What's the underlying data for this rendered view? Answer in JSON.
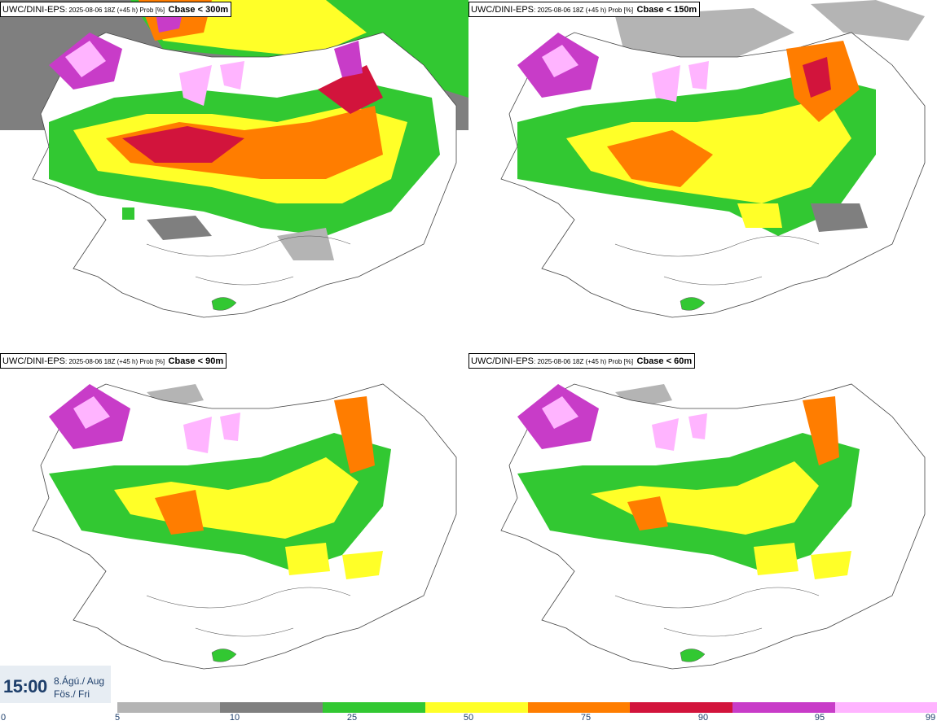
{
  "panels": [
    {
      "source": "UWC/DINI-EPS",
      "meta": ": 2025-08-06 18Z (+45 h) Prob [%]",
      "variable": "Cbase < 300m"
    },
    {
      "source": "UWC/DINI-EPS",
      "meta": ": 2025-08-06 18Z (+45 h) Prob [%]",
      "variable": "Cbase < 150m"
    },
    {
      "source": "UWC/DINI-EPS",
      "meta": ": 2025-08-06 18Z (+45 h) Prob [%]",
      "variable": "Cbase < 90m"
    },
    {
      "source": "UWC/DINI-EPS",
      "meta": ": 2025-08-06 18Z (+45 h) Prob [%]",
      "variable": "Cbase < 60m"
    }
  ],
  "valid_time": {
    "time": "15:00",
    "date_line1": "8.Ágú./ Aug",
    "date_line2": "Fös./ Fri"
  },
  "legend": {
    "ticks": [
      "0",
      "5",
      "10",
      "25",
      "50",
      "75",
      "90",
      "95",
      "99"
    ],
    "colors": [
      "#b4b4b4",
      "#7f7f7f",
      "#32c832",
      "#ffff28",
      "#ff7d00",
      "#d2143c",
      "#c83cc8",
      "#ffb4ff"
    ]
  },
  "colors": {
    "light_grey": "#b4b4b4",
    "dark_grey": "#7f7f7f",
    "green": "#32c832",
    "yellow": "#ffff28",
    "orange": "#ff7d00",
    "crimson": "#d2143c",
    "magenta": "#c83cc8",
    "pink": "#ffb4ff",
    "time_text": "#1e3f6b"
  }
}
